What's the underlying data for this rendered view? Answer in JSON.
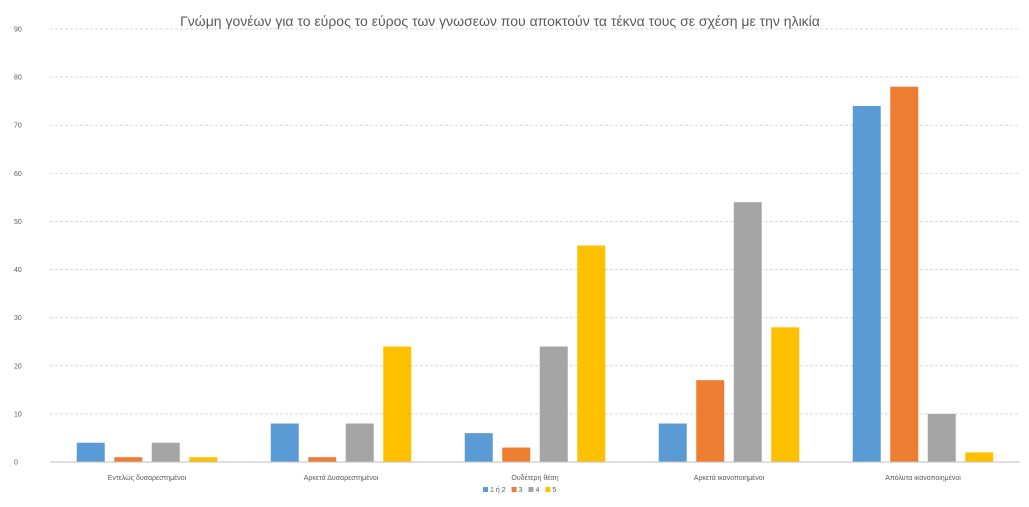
{
  "chart_data": {
    "type": "bar",
    "title": "Γνώμη γονέων για το εύρος το εύρος των γνωσεων που αποκτούν τα τέκνα τους σε σχέση με την ηλικία",
    "categories": [
      "Εντελώς δυσαρεστημένοι",
      "Αρκετά Δυσαρεστημένοι",
      "Ουδέτερη θέση",
      "Αρκετά ικανοποιημένοι",
      "Απόλυτα ικανοποιημένοι"
    ],
    "series": [
      {
        "name": "1 ή 2",
        "color": "#5b9bd5",
        "values": [
          4,
          8,
          6,
          8,
          74
        ]
      },
      {
        "name": "3",
        "color": "#ed7d31",
        "values": [
          1,
          1,
          3,
          17,
          78
        ]
      },
      {
        "name": "4",
        "color": "#a5a5a5",
        "values": [
          4,
          8,
          24,
          54,
          10
        ]
      },
      {
        "name": "5",
        "color": "#ffc000",
        "values": [
          1,
          24,
          45,
          28,
          2
        ]
      }
    ],
    "yticks": [
      0,
      10,
      20,
      30,
      40,
      50,
      60,
      70,
      80,
      90
    ],
    "ylim": [
      0,
      90
    ],
    "grid": true,
    "legend_position": "bottom"
  }
}
